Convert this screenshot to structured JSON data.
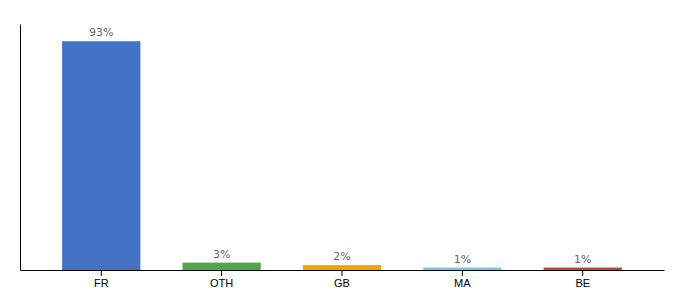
{
  "chart_data": {
    "type": "bar",
    "categories": [
      "FR",
      "OTH",
      "GB",
      "MA",
      "BE"
    ],
    "values": [
      93,
      3,
      2,
      1,
      1
    ],
    "value_labels": [
      "93%",
      "3%",
      "2%",
      "1%",
      "1%"
    ],
    "colors": [
      "#4472C4",
      "#4EA64B",
      "#F0A500",
      "#70C8E8",
      "#B84A2A"
    ],
    "ylim": [
      0,
      100
    ],
    "data_labels": true,
    "tick_labels": "x"
  }
}
